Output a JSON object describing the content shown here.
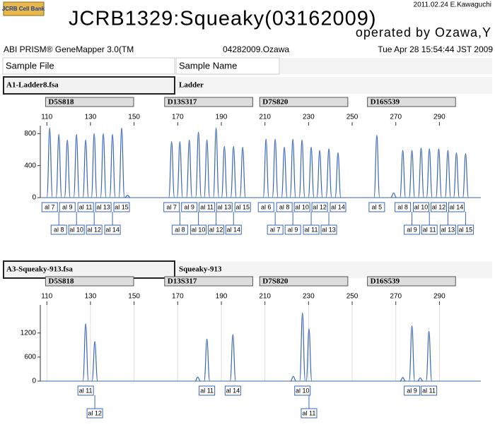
{
  "logo": "JCRB Cell Bank",
  "title": "JCRB1329:Squeaky(03162009)",
  "credit": "2011.02.24 E.Kawaguchi",
  "operator": "operated by Ozawa,Y",
  "software": "ABI PRISM® GeneMapper 3.0(TM",
  "run": "04282009.Ozawa",
  "date": "Tue Apr 28 15:54:44 JST 2009",
  "headers": [
    "Sample File",
    "Sample Name"
  ],
  "chart_data": [
    {
      "type": "electropherogram",
      "sample_file": "A1-Ladder8.fsa",
      "sample_name": "Ladder",
      "xlim": [
        107,
        309
      ],
      "xticks": [
        110,
        130,
        150,
        170,
        190,
        210,
        230,
        250,
        270,
        290
      ],
      "ylim": [
        0,
        900
      ],
      "yticks": [
        0,
        400,
        800
      ],
      "grid": false,
      "color": "#3a66b8",
      "markers": [
        {
          "name": "D5S818",
          "range": [
            109.4,
            149.8
          ]
        },
        {
          "name": "D13S317",
          "range": [
            164,
            204.4
          ]
        },
        {
          "name": "D7S820",
          "range": [
            207.6,
            248
          ]
        },
        {
          "name": "D16S539",
          "range": [
            257,
            297.4
          ]
        }
      ],
      "x": [
        111.3,
        115.5,
        119.4,
        123.6,
        127.8,
        131.7,
        135.9,
        140.1,
        144.3,
        147,
        167.2,
        171.0,
        175.3,
        179.5,
        183.4,
        187.6,
        191.4,
        195.6,
        199.8,
        210.5,
        214.7,
        218.9,
        222.8,
        227.0,
        231.2,
        235.1,
        239.3,
        243.5,
        261.3,
        269,
        273.2,
        277.4,
        281.6,
        285.4,
        289.7,
        293.9,
        297.8,
        302.0
      ],
      "values": [
        870,
        790,
        720,
        790,
        720,
        800,
        800,
        790,
        870,
        30,
        700,
        700,
        720,
        820,
        720,
        870,
        640,
        640,
        630,
        730,
        730,
        630,
        730,
        720,
        630,
        590,
        610,
        560,
        780,
        60,
        590,
        590,
        620,
        610,
        610,
        590,
        560,
        550
      ],
      "labels": [
        "al 7",
        "al 8",
        "al 9",
        "al 10",
        "al 11",
        "al 12",
        "al 13",
        "al 14",
        "al 15",
        null,
        "al 7",
        "al 8",
        "al 9",
        "al 10",
        "al 11",
        "al 12",
        "al 13",
        "al 14",
        "al 15",
        "al 6",
        "al 7",
        "al 8",
        "al 9",
        "al 10",
        "al 11",
        "al 12",
        "al 13",
        "al 14",
        "al 5",
        null,
        "al 8",
        "al 9",
        "al 10",
        "al 11",
        "al 12",
        "al 13",
        "al 14",
        "al 15"
      ]
    },
    {
      "type": "electropherogram",
      "sample_file": "A3-Squeaky-913.fsa",
      "sample_name": "Squeaky-913",
      "xlim": [
        107,
        309
      ],
      "xticks": [
        110,
        130,
        150,
        170,
        190,
        210,
        230,
        250,
        270,
        290
      ],
      "ylim": [
        0,
        1900
      ],
      "yticks": [
        0,
        600,
        1200
      ],
      "grid": true,
      "color": "#3a66b8",
      "markers": [
        {
          "name": "D5S818",
          "range": [
            109.4,
            149.8
          ]
        },
        {
          "name": "D13S317",
          "range": [
            164,
            204.4
          ]
        },
        {
          "name": "D7S820",
          "range": [
            207.6,
            248
          ]
        },
        {
          "name": "D16S539",
          "range": [
            257,
            297.4
          ]
        }
      ],
      "x": [
        127.8,
        132.0,
        179.2,
        183.4,
        195.3,
        223,
        227.2,
        230.2,
        273.2,
        277.4,
        281.2,
        285.2
      ],
      "values": [
        1430,
        985,
        100,
        1050,
        1160,
        120,
        1700,
        1300,
        90,
        1380,
        80,
        1240
      ],
      "labels": [
        "al 11",
        "al 12",
        null,
        "al 11",
        "al 14",
        null,
        "al 10",
        "al 11",
        null,
        "al 9",
        null,
        "al 11"
      ]
    }
  ]
}
